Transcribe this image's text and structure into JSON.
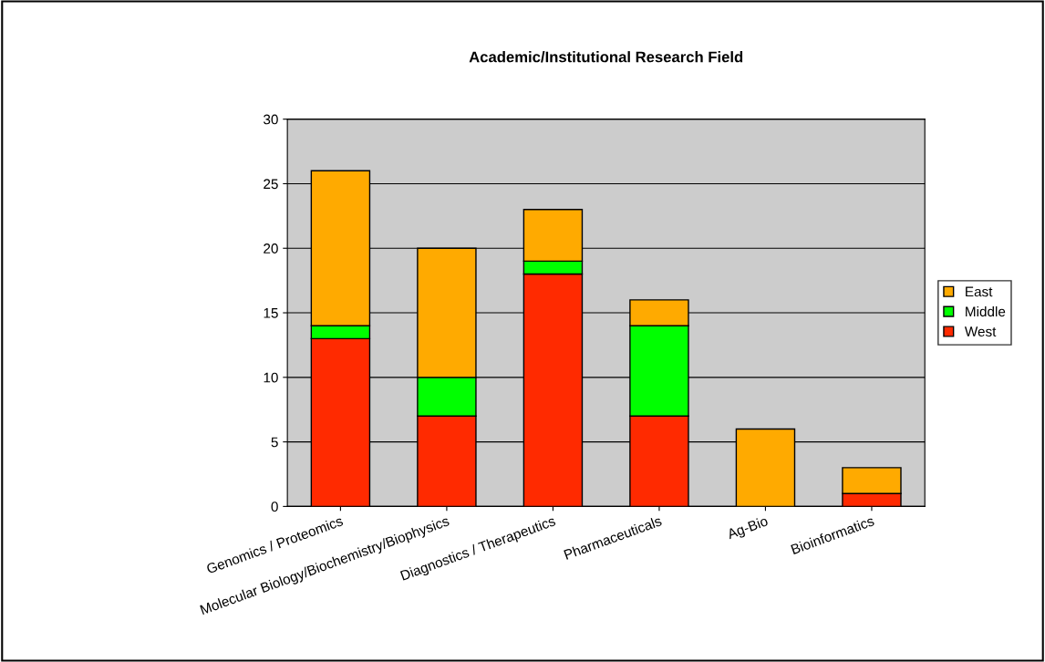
{
  "chart_data": {
    "type": "bar",
    "title": "Academic/Institutional Research Field",
    "stacked": true,
    "categories": [
      "Genomics / Proteomics",
      "Molecular Biology/Biochemistry/Biophysics",
      "Diagnostics / Therapeutics",
      "Pharmaceuticals",
      "Ag-Bio",
      "Bioinformatics"
    ],
    "series": [
      {
        "name": "West",
        "color": "#ff2a00",
        "values": [
          13,
          7,
          18,
          7,
          0,
          1
        ]
      },
      {
        "name": "Middle",
        "color": "#00ff00",
        "values": [
          1,
          3,
          1,
          7,
          0,
          0
        ]
      },
      {
        "name": "East",
        "color": "#ffaa00",
        "values": [
          12,
          10,
          4,
          2,
          6,
          2
        ]
      }
    ],
    "ylim": [
      0,
      30
    ],
    "yticks": [
      0,
      5,
      10,
      15,
      20,
      25,
      30
    ],
    "grid": "y",
    "legend": "right"
  }
}
